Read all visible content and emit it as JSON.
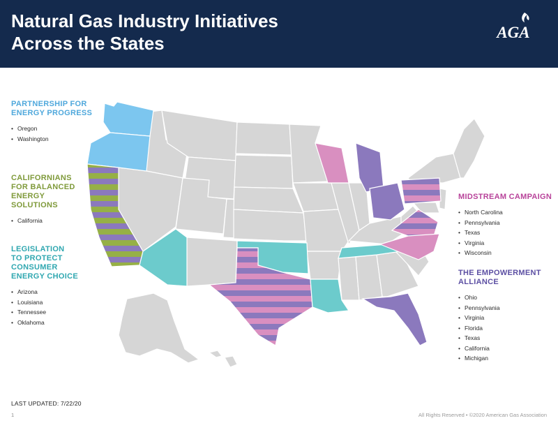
{
  "header": {
    "title_line1": "Natural Gas Industry Initiatives",
    "title_line2": "Across the States",
    "logo_text": "AGA",
    "background": "#142a4d"
  },
  "colors": {
    "partnership": "#7cc6ef",
    "californians": "#96b046",
    "legislation": "#6ccbcc",
    "midstream": "#d98fc0",
    "empowerment": "#8b79bd",
    "base_state": "#d6d6d6"
  },
  "groups": [
    {
      "id": "partnership",
      "title_lines": [
        "PARTNERSHIP FOR",
        "ENERGY PROGRESS"
      ],
      "color": "#4fa8dc",
      "items": [
        "Oregon",
        "Washington"
      ]
    },
    {
      "id": "californians",
      "title_lines": [
        "CALIFORNIANS",
        "FOR BALANCED",
        "ENERGY",
        "SOLUTIONS"
      ],
      "color": "#7f9a3a",
      "items": [
        "California"
      ]
    },
    {
      "id": "legislation",
      "title_lines": [
        "LEGISLATION",
        "TO PROTECT",
        "CONSUMER",
        "ENERGY CHOICE"
      ],
      "color": "#2fa7b0",
      "items": [
        "Arizona",
        "Louisiana",
        "Tennessee",
        "Oklahoma"
      ]
    },
    {
      "id": "midstream",
      "title_lines": [
        "MIDSTREAM CAMPAIGN"
      ],
      "color": "#b8439a",
      "items": [
        "North Carolina",
        "Pennsylvania",
        "Texas",
        "Virginia",
        "Wisconsin"
      ]
    },
    {
      "id": "empowerment",
      "title_lines": [
        "THE EMPOWERMENT",
        "ALLIANCE"
      ],
      "color": "#5c4fa3",
      "items": [
        "Ohio",
        "Pennsylvania",
        "Virginia",
        "Florida",
        "Texas",
        "California",
        "Michigan"
      ]
    }
  ],
  "footer": {
    "last_updated": "LAST UPDATED: 7/22/20",
    "page_number": "1",
    "rights": "All Rights Reserved • ©2020 American Gas Association"
  }
}
